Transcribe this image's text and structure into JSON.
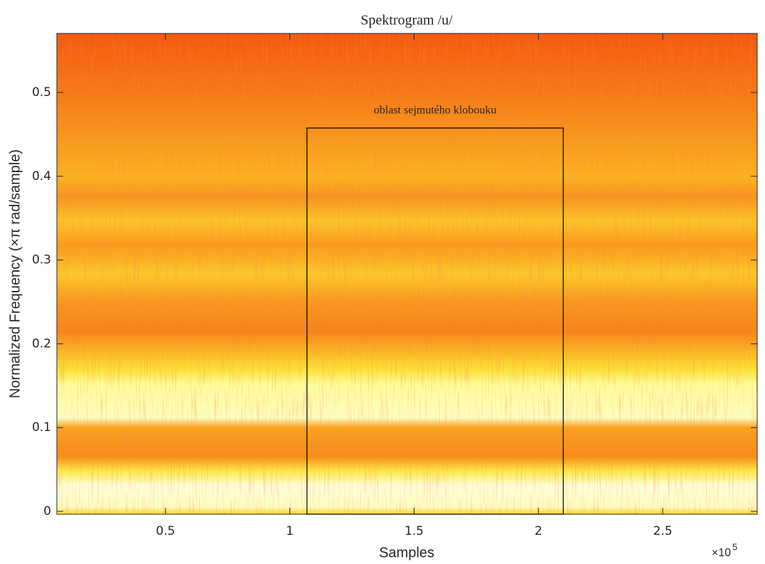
{
  "chart_data": {
    "type": "spectrogram",
    "title": "Spektrogram /u/",
    "x_label": "Samples",
    "y_label": "Normalized Frequency  (×π rad/sample)",
    "x_multiplier": "×10",
    "x_exponent": "5",
    "xlim": [
      6300,
      288000
    ],
    "ylim": [
      -0.0034,
      0.5705
    ],
    "xticks": [
      {
        "value": 50000,
        "label": "0.5"
      },
      {
        "value": 100000,
        "label": "1"
      },
      {
        "value": 150000,
        "label": "1.5"
      },
      {
        "value": 200000,
        "label": "2"
      },
      {
        "value": 250000,
        "label": "2.5"
      }
    ],
    "yticks": [
      0,
      0.1,
      0.2,
      0.3,
      0.4,
      0.5
    ],
    "region": {
      "label": "oblast sejmutého klobouku",
      "x": [
        106900,
        210000
      ],
      "y": [
        -0.0034,
        0.4576
      ],
      "color": "#000000"
    }
  }
}
